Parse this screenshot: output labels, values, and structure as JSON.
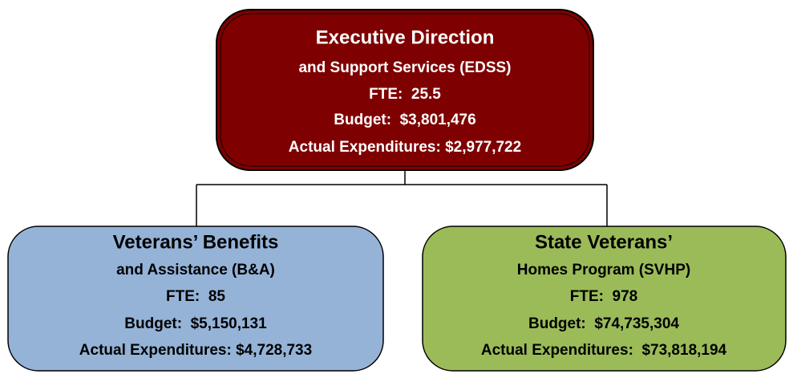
{
  "nodes": [
    {
      "lines": [
        "Executive Direction",
        "and Support Services (EDSS)",
        "FTE:  25.5",
        "Budget:  $3,801,476",
        "Actual Expenditures: $2,977,722"
      ]
    },
    {
      "lines": [
        "Veterans’ Benefits",
        "and Assistance (B&A)",
        "FTE:  85",
        "Budget:  $5,150,131",
        "Actual Expenditures: $4,728,733"
      ]
    },
    {
      "lines": [
        "State Veterans’",
        "Homes Program (SVHP)",
        "FTE:  978",
        "Budget:  $74,735,304",
        "Actual Expenditures:  $73,818,194"
      ]
    }
  ]
}
